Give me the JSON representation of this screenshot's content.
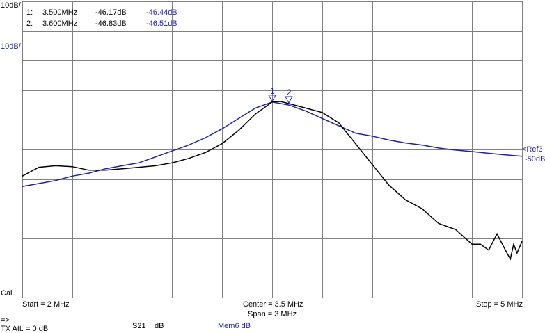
{
  "top_scale_label": "10dB/",
  "side_scale_label": "10dB/",
  "cal_label": "Cal",
  "ref_label": "<Ref3",
  "ref_value": "-50dB",
  "markers": [
    {
      "index": "1:",
      "freq": "3.500MHz",
      "val1": "-46.17dB",
      "val2": "-46.44dB",
      "flag": "1"
    },
    {
      "index": "2:",
      "freq": "3.600MHz",
      "val1": "-46.83dB",
      "val2": "-46.51dB",
      "flag": "2"
    }
  ],
  "axis": {
    "start_label": "Start = 2 MHz",
    "center_label": "Center = 3.5 MHz",
    "span_label": "Span = 3 MHz",
    "stop_label": "Stop = 5 MHz"
  },
  "footer": {
    "arrow": "=>",
    "tx_att": "TX Att. = 0 dB",
    "param": "S21",
    "unit": "dB",
    "mem": "Mem6 dB"
  },
  "colors": {
    "trace_live": "#000000",
    "trace_memory": "#1f1faa",
    "grid": "#808080"
  },
  "chart_data": {
    "type": "line",
    "xlim": [
      2.0,
      5.0
    ],
    "ylim": [
      -100,
      0
    ],
    "grid": true,
    "y_divisions": 10,
    "x_divisions": 10,
    "series": [
      {
        "color": "#000000",
        "x": [
          2.0,
          2.05,
          2.1,
          2.2,
          2.3,
          2.4,
          2.5,
          2.6,
          2.7,
          2.8,
          2.9,
          3.0,
          3.1,
          3.2,
          3.3,
          3.4,
          3.5,
          3.55,
          3.6,
          3.7,
          3.8,
          3.9,
          4.0,
          4.1,
          4.2,
          4.3,
          4.4,
          4.5,
          4.6,
          4.7,
          4.75,
          4.8,
          4.85,
          4.9,
          4.93,
          4.95,
          4.97,
          5.0
        ],
        "y": [
          -59,
          -57.5,
          -56,
          -55.5,
          -55.8,
          -57,
          -57,
          -56.5,
          -56,
          -55.5,
          -54.5,
          -53,
          -51,
          -48,
          -43.5,
          -38,
          -34,
          -33.8,
          -34.5,
          -36,
          -37.5,
          -41,
          -48,
          -55,
          -62,
          -67,
          -70,
          -75,
          -77,
          -82,
          -82,
          -84,
          -78.5,
          -84,
          -87,
          -82,
          -85,
          -81
        ]
      },
      {
        "color": "#1f1faa",
        "x": [
          2.0,
          2.1,
          2.2,
          2.3,
          2.4,
          2.5,
          2.6,
          2.7,
          2.8,
          2.9,
          3.0,
          3.1,
          3.2,
          3.3,
          3.4,
          3.5,
          3.6,
          3.7,
          3.8,
          3.9,
          4.0,
          4.1,
          4.2,
          4.3,
          4.4,
          4.5,
          4.6,
          4.7,
          4.8,
          4.9,
          5.0
        ],
        "y": [
          -62.5,
          -61.5,
          -60.5,
          -59,
          -58,
          -56.5,
          -55.5,
          -54.5,
          -52.5,
          -50.5,
          -48.5,
          -46,
          -43,
          -39.5,
          -36,
          -34,
          -35,
          -37,
          -39.5,
          -42,
          -44.5,
          -45.5,
          -46.8,
          -47.8,
          -48.5,
          -49.5,
          -50.2,
          -50.7,
          -51.3,
          -51.8,
          -52.3
        ]
      }
    ]
  }
}
